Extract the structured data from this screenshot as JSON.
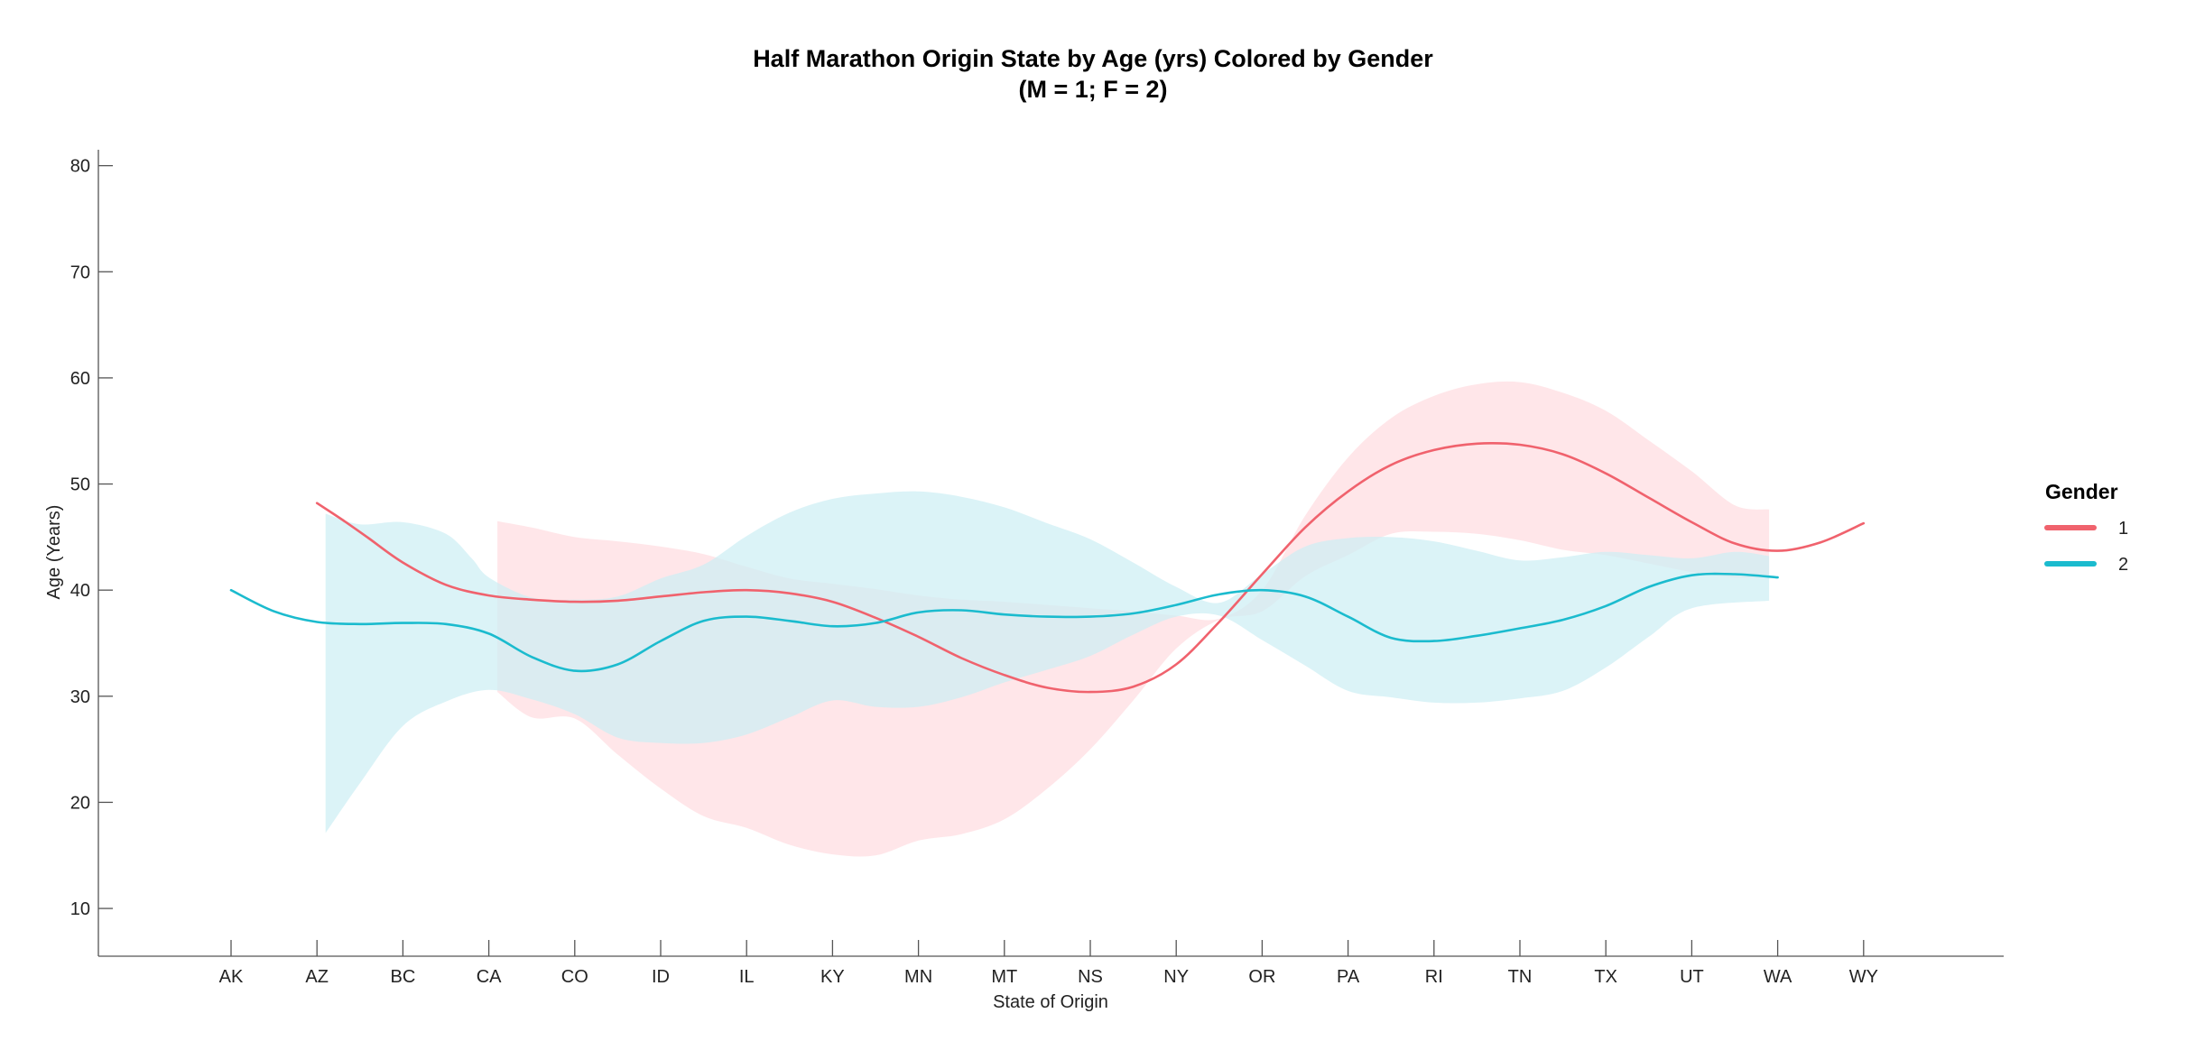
{
  "chart_data": {
    "type": "line",
    "title_line1": "Half Marathon Origin State by Age (yrs) Colored by Gender",
    "title_line2": "(M = 1; F = 2)",
    "xlabel": "State of Origin",
    "ylabel": "Age (Years)",
    "categories": [
      "AK",
      "AZ",
      "BC",
      "CA",
      "CO",
      "ID",
      "IL",
      "KY",
      "MN",
      "MT",
      "NS",
      "NY",
      "OR",
      "PA",
      "RI",
      "TN",
      "TX",
      "UT",
      "WA",
      "WY"
    ],
    "ylim": [
      5.5,
      81.5
    ],
    "yticks": [
      10,
      20,
      30,
      40,
      50,
      60,
      70,
      80
    ],
    "grid": false,
    "legend": {
      "title": "Gender",
      "placement": "right",
      "entries": [
        {
          "label": "1",
          "color": "#F0626D"
        },
        {
          "label": "2",
          "color": "#1BBBCE"
        }
      ]
    },
    "series": [
      {
        "name": "1",
        "color": "#F0626D",
        "band_color": "#FFDCE0",
        "line": [
          [
            1,
            48.2
          ],
          [
            1.3,
            46.6
          ],
          [
            1.6,
            44.9
          ],
          [
            2,
            42.6
          ],
          [
            2.5,
            40.5
          ],
          [
            3,
            39.5
          ],
          [
            3.5,
            39.1
          ],
          [
            4,
            38.9
          ],
          [
            4.5,
            39.0
          ],
          [
            5,
            39.4
          ],
          [
            5.5,
            39.8
          ],
          [
            6,
            40.0
          ],
          [
            6.5,
            39.7
          ],
          [
            7,
            38.9
          ],
          [
            7.5,
            37.4
          ],
          [
            8,
            35.6
          ],
          [
            8.5,
            33.6
          ],
          [
            9,
            32.0
          ],
          [
            9.5,
            30.8
          ],
          [
            10,
            30.4
          ],
          [
            10.5,
            30.9
          ],
          [
            11,
            33.0
          ],
          [
            11.5,
            37.0
          ],
          [
            12,
            41.5
          ],
          [
            12.5,
            45.9
          ],
          [
            13,
            49.3
          ],
          [
            13.5,
            51.8
          ],
          [
            14,
            53.2
          ],
          [
            14.5,
            53.8
          ],
          [
            15,
            53.7
          ],
          [
            15.5,
            52.8
          ],
          [
            16,
            51.0
          ],
          [
            16.5,
            48.7
          ],
          [
            17,
            46.4
          ],
          [
            17.5,
            44.4
          ],
          [
            18,
            43.7
          ],
          [
            18.5,
            44.5
          ],
          [
            19,
            46.3
          ]
        ],
        "band_upper": [
          [
            3.1,
            46.5
          ],
          [
            3.5,
            45.9
          ],
          [
            4,
            45.0
          ],
          [
            4.5,
            44.6
          ],
          [
            5,
            44.1
          ],
          [
            5.5,
            43.4
          ],
          [
            6,
            42.2
          ],
          [
            6.5,
            41.1
          ],
          [
            7,
            40.6
          ],
          [
            7.5,
            40.1
          ],
          [
            8,
            39.5
          ],
          [
            8.5,
            39.1
          ],
          [
            9,
            38.9
          ],
          [
            9.5,
            38.6
          ],
          [
            10,
            38.3
          ],
          [
            10.5,
            38.0
          ],
          [
            11,
            37.6
          ],
          [
            11.5,
            37.3
          ],
          [
            12,
            40.0
          ],
          [
            12.5,
            47.0
          ],
          [
            13,
            52.5
          ],
          [
            13.5,
            56.2
          ],
          [
            14,
            58.3
          ],
          [
            14.5,
            59.4
          ],
          [
            15,
            59.6
          ],
          [
            15.5,
            58.6
          ],
          [
            16,
            56.9
          ],
          [
            16.5,
            54.1
          ],
          [
            17,
            51.2
          ],
          [
            17.5,
            48.0
          ],
          [
            17.9,
            47.6
          ]
        ],
        "band_lower": [
          [
            3.1,
            30.4
          ],
          [
            3.5,
            28.0
          ],
          [
            4,
            27.9
          ],
          [
            4.5,
            24.5
          ],
          [
            5,
            21.3
          ],
          [
            5.5,
            18.7
          ],
          [
            6,
            17.6
          ],
          [
            6.5,
            16.0
          ],
          [
            7,
            15.1
          ],
          [
            7.5,
            15.0
          ],
          [
            8,
            16.4
          ],
          [
            8.5,
            17.0
          ],
          [
            9,
            18.4
          ],
          [
            9.5,
            21.3
          ],
          [
            10,
            25.0
          ],
          [
            10.5,
            29.6
          ],
          [
            11,
            34.5
          ],
          [
            11.5,
            37.2
          ],
          [
            12,
            38.0
          ],
          [
            12.5,
            41.3
          ],
          [
            13,
            43.3
          ],
          [
            13.5,
            45.3
          ],
          [
            14,
            45.5
          ],
          [
            14.5,
            45.3
          ],
          [
            15,
            44.7
          ],
          [
            15.5,
            43.8
          ],
          [
            16,
            43.3
          ],
          [
            16.5,
            42.5
          ],
          [
            17,
            41.7
          ],
          [
            17.5,
            41.2
          ],
          [
            17.9,
            41.2
          ]
        ]
      },
      {
        "name": "2",
        "color": "#1BBBCE",
        "band_color": "#CDEFF4",
        "line": [
          [
            0,
            40.0
          ],
          [
            0.5,
            38.0
          ],
          [
            1,
            37.0
          ],
          [
            1.5,
            36.8
          ],
          [
            2,
            36.9
          ],
          [
            2.5,
            36.8
          ],
          [
            3,
            35.9
          ],
          [
            3.5,
            33.7
          ],
          [
            4,
            32.4
          ],
          [
            4.5,
            33.0
          ],
          [
            5,
            35.2
          ],
          [
            5.5,
            37.1
          ],
          [
            6,
            37.5
          ],
          [
            6.5,
            37.1
          ],
          [
            7,
            36.6
          ],
          [
            7.5,
            36.9
          ],
          [
            8,
            37.9
          ],
          [
            8.5,
            38.1
          ],
          [
            9,
            37.7
          ],
          [
            9.5,
            37.5
          ],
          [
            10,
            37.5
          ],
          [
            10.5,
            37.8
          ],
          [
            11,
            38.6
          ],
          [
            11.5,
            39.6
          ],
          [
            12,
            40.0
          ],
          [
            12.5,
            39.4
          ],
          [
            13,
            37.5
          ],
          [
            13.5,
            35.5
          ],
          [
            14,
            35.2
          ],
          [
            14.5,
            35.7
          ],
          [
            15,
            36.4
          ],
          [
            15.5,
            37.2
          ],
          [
            16,
            38.5
          ],
          [
            16.5,
            40.3
          ],
          [
            17,
            41.4
          ],
          [
            17.5,
            41.5
          ],
          [
            18,
            41.2
          ]
        ],
        "band_upper": [
          [
            1.1,
            47.2
          ],
          [
            1.5,
            46.2
          ],
          [
            2,
            46.4
          ],
          [
            2.5,
            45.3
          ],
          [
            2.8,
            43.0
          ],
          [
            3,
            41.2
          ],
          [
            3.5,
            39.3
          ],
          [
            4,
            39.1
          ],
          [
            4.5,
            39.4
          ],
          [
            5,
            41.1
          ],
          [
            5.5,
            42.4
          ],
          [
            6,
            45.1
          ],
          [
            6.5,
            47.3
          ],
          [
            7,
            48.6
          ],
          [
            7.5,
            49.1
          ],
          [
            8,
            49.3
          ],
          [
            8.5,
            48.8
          ],
          [
            9,
            47.8
          ],
          [
            9.5,
            46.3
          ],
          [
            10,
            44.8
          ],
          [
            10.5,
            42.6
          ],
          [
            11,
            40.3
          ],
          [
            11.5,
            38.8
          ],
          [
            12,
            41.5
          ],
          [
            12.5,
            44.1
          ],
          [
            13,
            44.9
          ],
          [
            13.5,
            45.0
          ],
          [
            14,
            44.6
          ],
          [
            14.5,
            43.7
          ],
          [
            15,
            42.8
          ],
          [
            15.5,
            43.1
          ],
          [
            16,
            43.6
          ],
          [
            16.5,
            43.3
          ],
          [
            17,
            43.0
          ],
          [
            17.5,
            43.6
          ],
          [
            17.9,
            43.2
          ]
        ],
        "band_lower": [
          [
            1.1,
            17.1
          ],
          [
            1.5,
            21.8
          ],
          [
            2,
            27.2
          ],
          [
            2.5,
            29.5
          ],
          [
            3,
            30.6
          ],
          [
            3.5,
            29.7
          ],
          [
            4,
            28.3
          ],
          [
            4.5,
            26.1
          ],
          [
            5,
            25.6
          ],
          [
            5.5,
            25.6
          ],
          [
            6,
            26.4
          ],
          [
            6.5,
            28.0
          ],
          [
            7,
            29.6
          ],
          [
            7.5,
            29.0
          ],
          [
            8,
            29.0
          ],
          [
            8.5,
            29.9
          ],
          [
            9,
            31.3
          ],
          [
            9.5,
            32.5
          ],
          [
            10,
            33.8
          ],
          [
            10.5,
            35.8
          ],
          [
            11,
            37.5
          ],
          [
            11.5,
            37.6
          ],
          [
            12,
            35.3
          ],
          [
            12.5,
            32.9
          ],
          [
            13,
            30.5
          ],
          [
            13.5,
            29.9
          ],
          [
            14,
            29.4
          ],
          [
            14.5,
            29.4
          ],
          [
            15,
            29.8
          ],
          [
            15.5,
            30.5
          ],
          [
            16,
            32.7
          ],
          [
            16.5,
            35.6
          ],
          [
            17,
            38.3
          ],
          [
            17.9,
            39.0
          ]
        ]
      }
    ]
  }
}
